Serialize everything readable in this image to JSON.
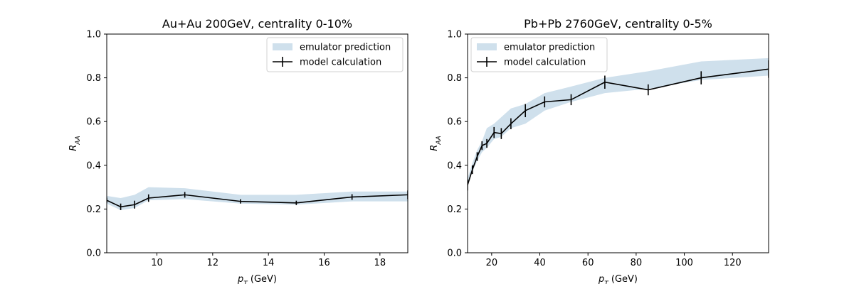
{
  "colors": {
    "band": "#cfe0ec",
    "line": "#000000",
    "axis": "#000000",
    "legend_border": "#d0d0d0"
  },
  "chart_data": [
    {
      "type": "line",
      "title": "Au+Au 200GeV, centrality 0-10%",
      "xlabel": "pT (GeV)",
      "ylabel": "RAA",
      "xlim": [
        8.2,
        19.0
      ],
      "ylim": [
        0.0,
        1.0
      ],
      "xticks": [
        10,
        12,
        14,
        16,
        18
      ],
      "yticks": [
        0.0,
        0.2,
        0.4,
        0.6,
        0.8,
        1.0
      ],
      "legend": {
        "position": "top-right",
        "entries": [
          "emulator prediction",
          "model calculation"
        ]
      },
      "grid": false,
      "series": [
        {
          "name": "emulator prediction",
          "kind": "band",
          "x": [
            8.2,
            8.7,
            9.2,
            9.7,
            11.0,
            13.0,
            15.0,
            17.0,
            19.0
          ],
          "lower": [
            0.225,
            0.195,
            0.205,
            0.24,
            0.245,
            0.225,
            0.22,
            0.235,
            0.235
          ],
          "upper": [
            0.26,
            0.25,
            0.265,
            0.3,
            0.295,
            0.265,
            0.265,
            0.28,
            0.28
          ]
        },
        {
          "name": "model calculation",
          "kind": "errorbar-line",
          "x": [
            8.2,
            8.7,
            9.2,
            9.7,
            11.0,
            13.0,
            15.0,
            17.0,
            19.0
          ],
          "y": [
            0.24,
            0.21,
            0.22,
            0.25,
            0.265,
            0.235,
            0.228,
            0.255,
            0.265
          ],
          "yerr": [
            0.012,
            0.015,
            0.018,
            0.017,
            0.013,
            0.01,
            0.01,
            0.013,
            0.02
          ]
        }
      ]
    },
    {
      "type": "line",
      "title": "Pb+Pb 2760GeV, centrality 0-5%",
      "xlabel": "pT (GeV)",
      "ylabel": "RAA",
      "xlim": [
        10.0,
        135.0
      ],
      "ylim": [
        0.0,
        1.0
      ],
      "xticks": [
        20,
        40,
        60,
        80,
        100,
        120
      ],
      "yticks": [
        0.0,
        0.2,
        0.4,
        0.6,
        0.8,
        1.0
      ],
      "legend": {
        "position": "top-left",
        "entries": [
          "emulator prediction",
          "model calculation"
        ]
      },
      "grid": false,
      "series": [
        {
          "name": "emulator prediction",
          "kind": "band",
          "x": [
            10,
            12,
            14,
            16,
            18,
            21,
            24,
            28,
            34,
            42,
            53,
            67,
            85,
            107,
            135
          ],
          "lower": [
            0.32,
            0.37,
            0.42,
            0.46,
            0.48,
            0.52,
            0.53,
            0.57,
            0.59,
            0.65,
            0.69,
            0.73,
            0.75,
            0.79,
            0.81
          ],
          "upper": [
            0.34,
            0.41,
            0.47,
            0.51,
            0.57,
            0.59,
            0.62,
            0.66,
            0.68,
            0.73,
            0.76,
            0.8,
            0.83,
            0.875,
            0.89
          ]
        },
        {
          "name": "model calculation",
          "kind": "errorbar-line",
          "x": [
            10,
            12,
            14,
            16,
            18,
            21,
            24,
            28,
            34,
            42,
            53,
            67,
            85,
            107,
            135
          ],
          "y": [
            0.31,
            0.38,
            0.44,
            0.49,
            0.5,
            0.55,
            0.545,
            0.59,
            0.65,
            0.69,
            0.7,
            0.78,
            0.745,
            0.8,
            0.84
          ],
          "yerr": [
            0.025,
            0.02,
            0.02,
            0.02,
            0.02,
            0.025,
            0.025,
            0.025,
            0.03,
            0.025,
            0.025,
            0.03,
            0.025,
            0.03,
            0.04
          ]
        }
      ]
    }
  ]
}
